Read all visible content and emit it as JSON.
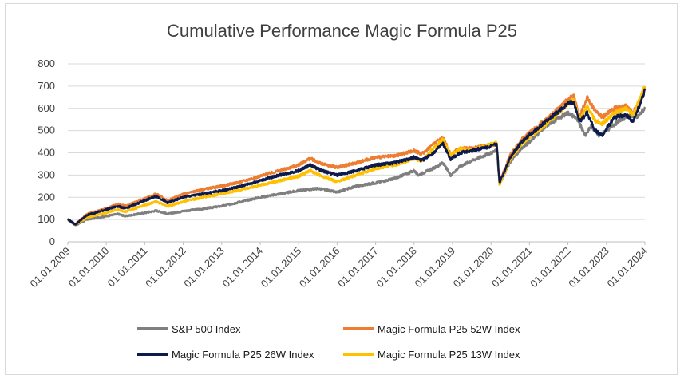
{
  "chart_data": {
    "type": "line",
    "title": "Cumulative Performance Magic Formula P25",
    "xlabel": "",
    "ylabel": "",
    "ylim": [
      0,
      800
    ],
    "yticks": [
      0,
      100,
      200,
      300,
      400,
      500,
      600,
      700,
      800
    ],
    "xticks": [
      "01.01.2009",
      "01.01.2010",
      "01.01.2011",
      "01.01.2012",
      "01.01.2013",
      "01.01.2014",
      "01.01.2015",
      "01.01.2016",
      "01.01.2017",
      "01.01.2018",
      "01.01.2019",
      "01.01.2020",
      "01.01.2021",
      "01.01.2022",
      "01.01.2023",
      "01.01.2024"
    ],
    "xlim": [
      2009.0,
      2024.0
    ],
    "grid": true,
    "legend_position": "bottom",
    "series": [
      {
        "name": "S&P 500 Index",
        "color": "#7f7f7f",
        "points": [
          [
            2009.0,
            100
          ],
          [
            2009.2,
            75
          ],
          [
            2009.5,
            100
          ],
          [
            2010.0,
            115
          ],
          [
            2010.3,
            125
          ],
          [
            2010.5,
            115
          ],
          [
            2011.0,
            130
          ],
          [
            2011.3,
            140
          ],
          [
            2011.6,
            125
          ],
          [
            2012.0,
            138
          ],
          [
            2012.5,
            148
          ],
          [
            2013.0,
            160
          ],
          [
            2013.5,
            180
          ],
          [
            2014.0,
            200
          ],
          [
            2014.5,
            215
          ],
          [
            2015.0,
            230
          ],
          [
            2015.5,
            240
          ],
          [
            2015.8,
            230
          ],
          [
            2016.0,
            222
          ],
          [
            2016.2,
            235
          ],
          [
            2016.5,
            250
          ],
          [
            2017.0,
            265
          ],
          [
            2017.5,
            285
          ],
          [
            2018.0,
            320
          ],
          [
            2018.1,
            300
          ],
          [
            2018.5,
            330
          ],
          [
            2018.75,
            355
          ],
          [
            2018.95,
            300
          ],
          [
            2019.2,
            340
          ],
          [
            2019.5,
            365
          ],
          [
            2020.0,
            400
          ],
          [
            2020.15,
            410
          ],
          [
            2020.22,
            260
          ],
          [
            2020.5,
            360
          ],
          [
            2020.8,
            420
          ],
          [
            2021.0,
            450
          ],
          [
            2021.5,
            530
          ],
          [
            2022.0,
            580
          ],
          [
            2022.2,
            560
          ],
          [
            2022.45,
            480
          ],
          [
            2022.6,
            520
          ],
          [
            2022.8,
            480
          ],
          [
            2023.0,
            500
          ],
          [
            2023.3,
            540
          ],
          [
            2023.6,
            570
          ],
          [
            2023.8,
            560
          ],
          [
            2024.0,
            600
          ]
        ]
      },
      {
        "name": "Magic Formula P25 52W Index",
        "color": "#ed7d31",
        "points": [
          [
            2009.0,
            100
          ],
          [
            2009.2,
            80
          ],
          [
            2009.5,
            125
          ],
          [
            2010.0,
            150
          ],
          [
            2010.3,
            170
          ],
          [
            2010.5,
            160
          ],
          [
            2011.0,
            195
          ],
          [
            2011.3,
            215
          ],
          [
            2011.6,
            185
          ],
          [
            2012.0,
            215
          ],
          [
            2012.5,
            235
          ],
          [
            2013.0,
            250
          ],
          [
            2013.5,
            270
          ],
          [
            2014.0,
            295
          ],
          [
            2014.5,
            320
          ],
          [
            2015.0,
            345
          ],
          [
            2015.3,
            375
          ],
          [
            2015.6,
            350
          ],
          [
            2016.0,
            335
          ],
          [
            2016.5,
            355
          ],
          [
            2017.0,
            380
          ],
          [
            2017.5,
            385
          ],
          [
            2018.0,
            410
          ],
          [
            2018.2,
            395
          ],
          [
            2018.5,
            440
          ],
          [
            2018.75,
            470
          ],
          [
            2018.95,
            395
          ],
          [
            2019.2,
            420
          ],
          [
            2019.5,
            420
          ],
          [
            2020.0,
            435
          ],
          [
            2020.15,
            440
          ],
          [
            2020.22,
            270
          ],
          [
            2020.5,
            390
          ],
          [
            2020.8,
            460
          ],
          [
            2021.0,
            490
          ],
          [
            2021.5,
            560
          ],
          [
            2022.0,
            640
          ],
          [
            2022.15,
            660
          ],
          [
            2022.3,
            560
          ],
          [
            2022.5,
            650
          ],
          [
            2022.7,
            590
          ],
          [
            2022.9,
            560
          ],
          [
            2023.2,
            600
          ],
          [
            2023.5,
            610
          ],
          [
            2023.7,
            580
          ],
          [
            2024.0,
            690
          ]
        ]
      },
      {
        "name": "Magic Formula P25 26W Index",
        "color": "#0d1b4c",
        "points": [
          [
            2009.0,
            100
          ],
          [
            2009.2,
            78
          ],
          [
            2009.5,
            120
          ],
          [
            2010.0,
            145
          ],
          [
            2010.3,
            160
          ],
          [
            2010.5,
            150
          ],
          [
            2011.0,
            185
          ],
          [
            2011.3,
            205
          ],
          [
            2011.6,
            175
          ],
          [
            2012.0,
            200
          ],
          [
            2012.5,
            215
          ],
          [
            2013.0,
            230
          ],
          [
            2013.5,
            250
          ],
          [
            2014.0,
            275
          ],
          [
            2014.5,
            300
          ],
          [
            2015.0,
            320
          ],
          [
            2015.3,
            345
          ],
          [
            2015.6,
            320
          ],
          [
            2016.0,
            300
          ],
          [
            2016.5,
            320
          ],
          [
            2017.0,
            345
          ],
          [
            2017.5,
            355
          ],
          [
            2018.0,
            380
          ],
          [
            2018.2,
            365
          ],
          [
            2018.5,
            400
          ],
          [
            2018.75,
            440
          ],
          [
            2018.95,
            370
          ],
          [
            2019.2,
            400
          ],
          [
            2019.5,
            410
          ],
          [
            2020.0,
            430
          ],
          [
            2020.15,
            440
          ],
          [
            2020.22,
            265
          ],
          [
            2020.5,
            380
          ],
          [
            2020.8,
            450
          ],
          [
            2021.0,
            480
          ],
          [
            2021.5,
            550
          ],
          [
            2022.0,
            620
          ],
          [
            2022.15,
            630
          ],
          [
            2022.3,
            540
          ],
          [
            2022.5,
            580
          ],
          [
            2022.7,
            500
          ],
          [
            2022.9,
            480
          ],
          [
            2023.2,
            560
          ],
          [
            2023.5,
            570
          ],
          [
            2023.7,
            540
          ],
          [
            2024.0,
            680
          ]
        ]
      },
      {
        "name": "Magic Formula P25 13W Index",
        "color": "#ffc000",
        "points": [
          [
            2009.0,
            100
          ],
          [
            2009.2,
            78
          ],
          [
            2009.5,
            110
          ],
          [
            2010.0,
            130
          ],
          [
            2010.3,
            145
          ],
          [
            2010.5,
            135
          ],
          [
            2011.0,
            165
          ],
          [
            2011.3,
            180
          ],
          [
            2011.6,
            160
          ],
          [
            2012.0,
            180
          ],
          [
            2012.5,
            200
          ],
          [
            2013.0,
            215
          ],
          [
            2013.5,
            235
          ],
          [
            2014.0,
            255
          ],
          [
            2014.5,
            275
          ],
          [
            2015.0,
            295
          ],
          [
            2015.3,
            320
          ],
          [
            2015.6,
            295
          ],
          [
            2016.0,
            270
          ],
          [
            2016.5,
            300
          ],
          [
            2017.0,
            330
          ],
          [
            2017.5,
            345
          ],
          [
            2018.0,
            375
          ],
          [
            2018.2,
            360
          ],
          [
            2018.5,
            420
          ],
          [
            2018.75,
            460
          ],
          [
            2018.95,
            390
          ],
          [
            2019.2,
            420
          ],
          [
            2019.5,
            410
          ],
          [
            2020.0,
            440
          ],
          [
            2020.15,
            445
          ],
          [
            2020.22,
            255
          ],
          [
            2020.5,
            370
          ],
          [
            2020.8,
            440
          ],
          [
            2021.0,
            470
          ],
          [
            2021.5,
            540
          ],
          [
            2022.0,
            620
          ],
          [
            2022.15,
            640
          ],
          [
            2022.3,
            550
          ],
          [
            2022.5,
            610
          ],
          [
            2022.7,
            545
          ],
          [
            2022.9,
            530
          ],
          [
            2023.2,
            580
          ],
          [
            2023.5,
            600
          ],
          [
            2023.7,
            570
          ],
          [
            2024.0,
            700
          ]
        ]
      }
    ]
  }
}
